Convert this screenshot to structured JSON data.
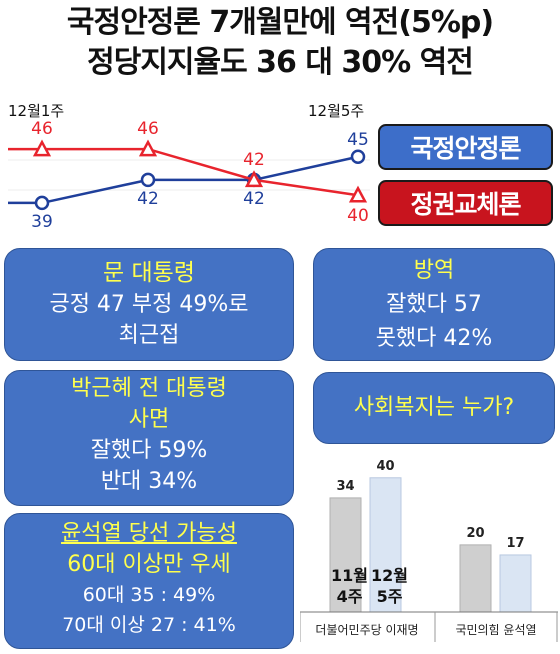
{
  "title": {
    "line1": "국정안정론 7개월만에 역전(5%p)",
    "line2": "정당지지율도 36 대 30% 역전"
  },
  "chart_data": [
    {
      "type": "line",
      "categories": [
        "12월1주",
        "",
        "",
        "12월5주"
      ],
      "series": [
        {
          "name": "국정안정론",
          "values": [
            39,
            42,
            42,
            45
          ],
          "color": "#1f3f9b"
        },
        {
          "name": "정권교체론",
          "values": [
            46,
            46,
            42,
            40
          ],
          "color": "#e8242d"
        }
      ],
      "ylim": [
        36,
        49
      ],
      "legend": "right"
    },
    {
      "type": "bar",
      "title": "사회복지는 누가?",
      "categories": [
        "더불어민주당 이재명",
        "국민의힘 윤석열"
      ],
      "series": [
        {
          "name": "11월 4주",
          "values": [
            34,
            20
          ],
          "color": "#cfcfcf"
        },
        {
          "name": "12월 5주",
          "values": [
            40,
            17
          ],
          "color": "#dae5f3"
        }
      ],
      "ylim": [
        0,
        45
      ]
    }
  ],
  "legend": {
    "blue": "국정안정론",
    "red": "정권교체론"
  },
  "cards": {
    "moon": {
      "headline": "문 대통령",
      "line2": "긍정 47 부정 49%로",
      "line3": "최근접"
    },
    "covid": {
      "headline": "방역",
      "line2": "잘했다 57",
      "line3": "못했다 42%"
    },
    "park": {
      "headline1": "박근혜 전 대통령",
      "headline2": "사면",
      "line3": "잘했다 59%",
      "line4": "반대 34%"
    },
    "welfare": {
      "question": "사회복지는 누가?"
    },
    "yoon": {
      "headline1": "윤석열 당선 가능성",
      "headline2": "60대 이상만 우세",
      "line3": "60대 35 : 49%",
      "line4": "70대 이상 27 : 41%"
    }
  },
  "colors": {
    "card": "#4472c4",
    "highlight": "#ffff4d",
    "blue_series": "#1f3f9b",
    "red_series": "#e8242d"
  }
}
